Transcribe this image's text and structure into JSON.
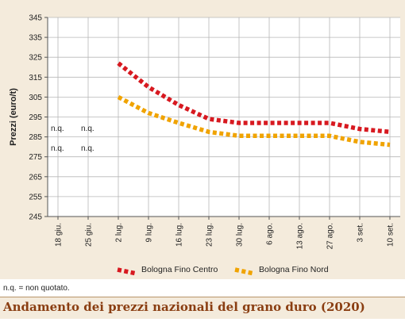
{
  "chart_data": {
    "type": "line",
    "ylabel": "Prezzi (euro/t)",
    "xlabel": "",
    "ylim": [
      245,
      345
    ],
    "yticks": [
      245,
      255,
      265,
      275,
      285,
      295,
      305,
      315,
      325,
      335,
      345
    ],
    "categories": [
      "18 giu.",
      "25 giu.",
      "2 lug.",
      "9 lug.",
      "16 lug.",
      "23 lug.",
      "30 lug.",
      "6 ago.",
      "13 ago.",
      "27 ago.",
      "3 set.",
      "10 set."
    ],
    "grid": true,
    "legend_position": "bottom",
    "series": [
      {
        "name": "Bologna Fino Centro",
        "color": "#d71920",
        "values": [
          null,
          null,
          322,
          310,
          301,
          294,
          292,
          292,
          292,
          292,
          289,
          287.5
        ]
      },
      {
        "name": "Bologna Fino Nord",
        "color": "#f0a300",
        "values": [
          null,
          null,
          305,
          297,
          292,
          287.5,
          285.5,
          285.5,
          285.5,
          285.5,
          282.5,
          281
        ]
      }
    ],
    "annotations": [
      {
        "text": "n.q.",
        "x": "18 giu.",
        "y": 288
      },
      {
        "text": "n.q.",
        "x": "25 giu.",
        "y": 288
      },
      {
        "text": "n.q.",
        "x": "18 giu.",
        "y": 278
      },
      {
        "text": "n.q.",
        "x": "25 giu.",
        "y": 278
      }
    ]
  },
  "note": "n.q. = non quotato.",
  "title": "Andamento dei prezzi nazionali del grano duro (2020)"
}
